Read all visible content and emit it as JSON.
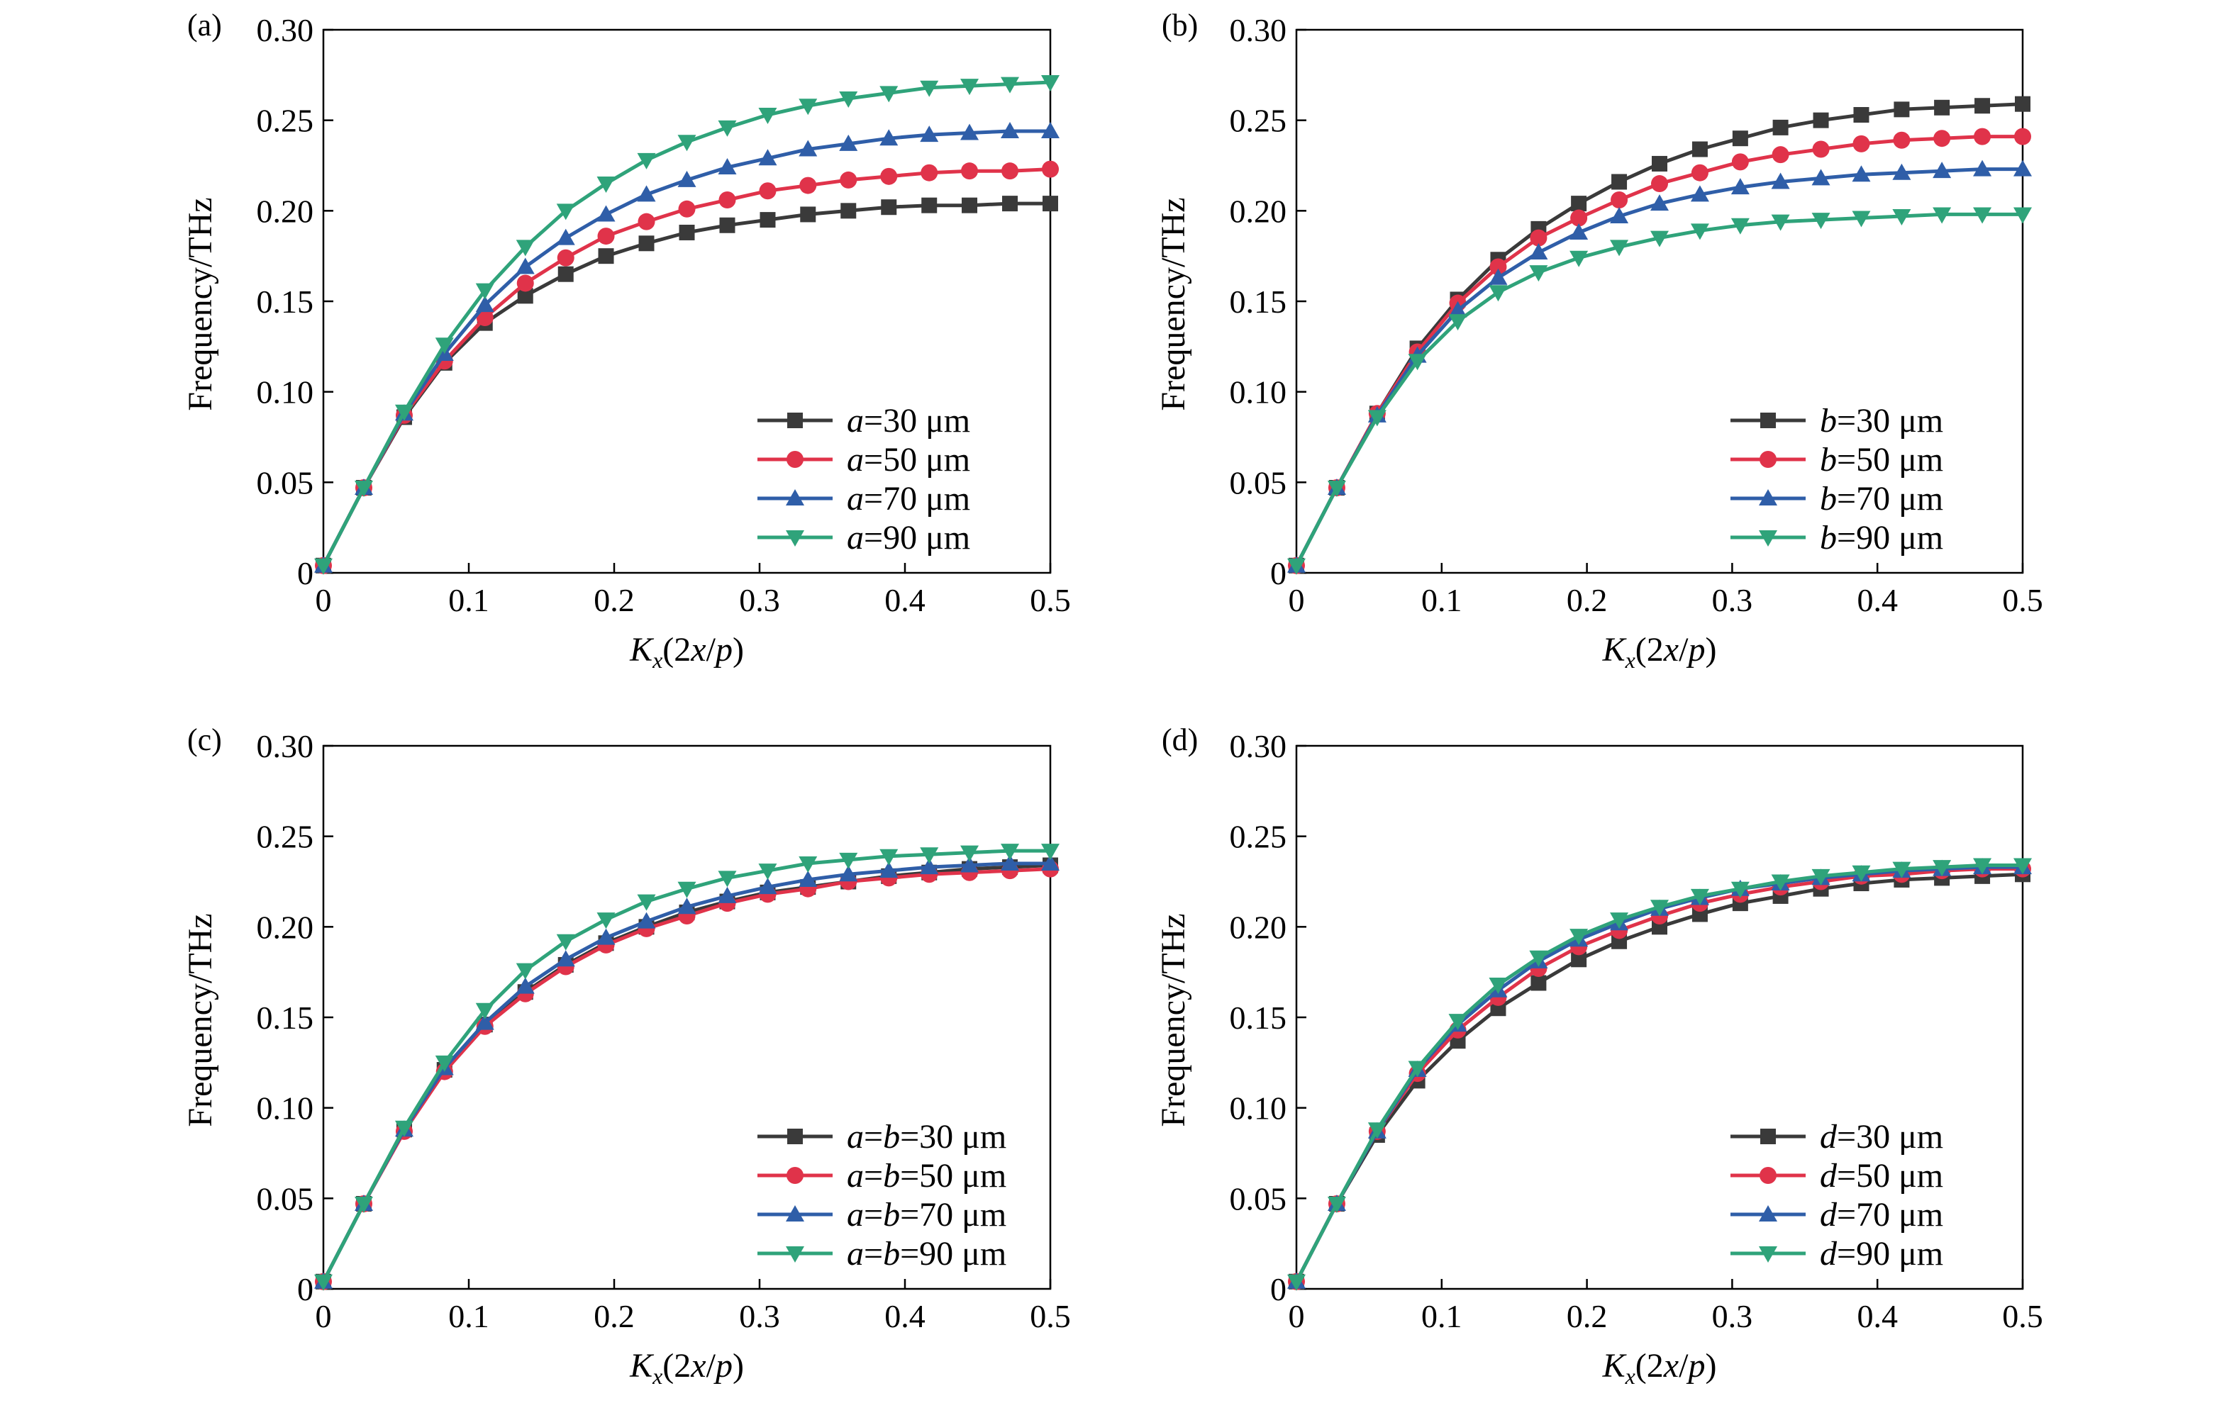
{
  "colors": {
    "series": [
      "#3a3a3a",
      "#e0334a",
      "#2f5ea8",
      "#2fa37a"
    ],
    "axis": "#000000",
    "background": "#ffffff"
  },
  "markers": [
    "square",
    "circle",
    "triangle-up",
    "triangle-down"
  ],
  "chart_data": [
    {
      "type": "line",
      "panel_label": "(a)",
      "xlabel": "Kx(2x/p)",
      "ylabel": "Frequency/THz",
      "xlim": [
        0,
        0.5
      ],
      "ylim": [
        0,
        0.3
      ],
      "xticks": [
        "0",
        "0.1",
        "0.2",
        "0.3",
        "0.4",
        "0.5"
      ],
      "yticks": [
        "0",
        "0.05",
        "0.10",
        "0.15",
        "0.20",
        "0.25",
        "0.30"
      ],
      "grid": false,
      "legend_position": "bottom-right",
      "x": [
        0,
        0.0278,
        0.0556,
        0.0833,
        0.1111,
        0.1389,
        0.1667,
        0.1944,
        0.2222,
        0.25,
        0.2778,
        0.3056,
        0.3333,
        0.3611,
        0.3889,
        0.4167,
        0.4444,
        0.4722,
        0.5
      ],
      "series": [
        {
          "name_var": "a",
          "name_val": "=30 μm",
          "values": [
            0.004,
            0.047,
            0.086,
            0.116,
            0.138,
            0.153,
            0.165,
            0.175,
            0.182,
            0.188,
            0.192,
            0.195,
            0.198,
            0.2,
            0.202,
            0.203,
            0.203,
            0.204,
            0.204
          ]
        },
        {
          "name_var": "a",
          "name_val": "=50 μm",
          "values": [
            0.004,
            0.047,
            0.087,
            0.117,
            0.141,
            0.16,
            0.174,
            0.186,
            0.194,
            0.201,
            0.206,
            0.211,
            0.214,
            0.217,
            0.219,
            0.221,
            0.222,
            0.222,
            0.223
          ]
        },
        {
          "name_var": "a",
          "name_val": "=70 μm",
          "values": [
            0.004,
            0.047,
            0.088,
            0.121,
            0.148,
            0.169,
            0.185,
            0.198,
            0.209,
            0.217,
            0.224,
            0.229,
            0.234,
            0.237,
            0.24,
            0.242,
            0.243,
            0.244,
            0.244
          ]
        },
        {
          "name_var": "a",
          "name_val": "=90 μm",
          "values": [
            0.004,
            0.047,
            0.089,
            0.126,
            0.156,
            0.18,
            0.2,
            0.215,
            0.228,
            0.238,
            0.246,
            0.253,
            0.258,
            0.262,
            0.265,
            0.268,
            0.269,
            0.27,
            0.271
          ]
        }
      ]
    },
    {
      "type": "line",
      "panel_label": "(b)",
      "xlabel": "Kx(2x/p)",
      "ylabel": "Frequency/THz",
      "xlim": [
        0,
        0.5
      ],
      "ylim": [
        0,
        0.3
      ],
      "xticks": [
        "0",
        "0.1",
        "0.2",
        "0.3",
        "0.4",
        "0.5"
      ],
      "yticks": [
        "0",
        "0.05",
        "0.10",
        "0.15",
        "0.20",
        "0.25",
        "0.30"
      ],
      "grid": false,
      "legend_position": "bottom-right",
      "x": [
        0,
        0.0278,
        0.0556,
        0.0833,
        0.1111,
        0.1389,
        0.1667,
        0.1944,
        0.2222,
        0.25,
        0.2778,
        0.3056,
        0.3333,
        0.3611,
        0.3889,
        0.4167,
        0.4444,
        0.4722,
        0.5
      ],
      "series": [
        {
          "name_var": "b",
          "name_val": "=30 μm",
          "values": [
            0.004,
            0.047,
            0.088,
            0.124,
            0.151,
            0.173,
            0.19,
            0.204,
            0.216,
            0.226,
            0.234,
            0.24,
            0.246,
            0.25,
            0.253,
            0.256,
            0.257,
            0.258,
            0.259
          ]
        },
        {
          "name_var": "b",
          "name_val": "=50 μm",
          "values": [
            0.004,
            0.047,
            0.088,
            0.122,
            0.149,
            0.169,
            0.185,
            0.196,
            0.206,
            0.215,
            0.221,
            0.227,
            0.231,
            0.234,
            0.237,
            0.239,
            0.24,
            0.241,
            0.241
          ]
        },
        {
          "name_var": "b",
          "name_val": "=70 μm",
          "values": [
            0.004,
            0.047,
            0.087,
            0.12,
            0.145,
            0.163,
            0.177,
            0.188,
            0.197,
            0.204,
            0.209,
            0.213,
            0.216,
            0.218,
            0.22,
            0.221,
            0.222,
            0.223,
            0.223
          ]
        },
        {
          "name_var": "b",
          "name_val": "=90 μm",
          "values": [
            0.004,
            0.047,
            0.086,
            0.117,
            0.139,
            0.155,
            0.166,
            0.174,
            0.18,
            0.185,
            0.189,
            0.192,
            0.194,
            0.195,
            0.196,
            0.197,
            0.198,
            0.198,
            0.198
          ]
        }
      ]
    },
    {
      "type": "line",
      "panel_label": "(c)",
      "xlabel": "Kx(2x/p)",
      "ylabel": "Frequency/THz",
      "xlim": [
        0,
        0.5
      ],
      "ylim": [
        0,
        0.3
      ],
      "xticks": [
        "0",
        "0.1",
        "0.2",
        "0.3",
        "0.4",
        "0.5"
      ],
      "yticks": [
        "0",
        "0.05",
        "0.10",
        "0.15",
        "0.20",
        "0.25",
        "0.30"
      ],
      "grid": false,
      "legend_position": "bottom-right",
      "x": [
        0,
        0.0278,
        0.0556,
        0.0833,
        0.1111,
        0.1389,
        0.1667,
        0.1944,
        0.2222,
        0.25,
        0.2778,
        0.3056,
        0.3333,
        0.3611,
        0.3889,
        0.4167,
        0.4444,
        0.4722,
        0.5
      ],
      "series": [
        {
          "name_var": "a=b",
          "name_val": "=30 μm",
          "values": [
            0.004,
            0.047,
            0.088,
            0.121,
            0.146,
            0.164,
            0.179,
            0.191,
            0.2,
            0.208,
            0.214,
            0.219,
            0.222,
            0.225,
            0.228,
            0.23,
            0.232,
            0.233,
            0.234
          ]
        },
        {
          "name_var": "a=b",
          "name_val": "=50 μm",
          "values": [
            0.004,
            0.047,
            0.087,
            0.12,
            0.145,
            0.163,
            0.178,
            0.19,
            0.199,
            0.206,
            0.213,
            0.218,
            0.221,
            0.225,
            0.227,
            0.229,
            0.23,
            0.231,
            0.232
          ]
        },
        {
          "name_var": "a=b",
          "name_val": "=70 μm",
          "values": [
            0.004,
            0.047,
            0.088,
            0.122,
            0.147,
            0.167,
            0.182,
            0.194,
            0.203,
            0.211,
            0.217,
            0.222,
            0.226,
            0.229,
            0.231,
            0.233,
            0.234,
            0.235,
            0.235
          ]
        },
        {
          "name_var": "a=b",
          "name_val": "=90 μm",
          "values": [
            0.004,
            0.047,
            0.089,
            0.125,
            0.154,
            0.176,
            0.192,
            0.204,
            0.214,
            0.221,
            0.227,
            0.231,
            0.235,
            0.237,
            0.239,
            0.24,
            0.241,
            0.242,
            0.242
          ]
        }
      ]
    },
    {
      "type": "line",
      "panel_label": "(d)",
      "xlabel": "Kx(2x/p)",
      "ylabel": "Frequency/THz",
      "xlim": [
        0,
        0.5
      ],
      "ylim": [
        0,
        0.3
      ],
      "xticks": [
        "0",
        "0.1",
        "0.2",
        "0.3",
        "0.4",
        "0.5"
      ],
      "yticks": [
        "0",
        "0.05",
        "0.10",
        "0.15",
        "0.20",
        "0.25",
        "0.30"
      ],
      "grid": false,
      "legend_position": "bottom-right",
      "x": [
        0,
        0.0278,
        0.0556,
        0.0833,
        0.1111,
        0.1389,
        0.1667,
        0.1944,
        0.2222,
        0.25,
        0.2778,
        0.3056,
        0.3333,
        0.3611,
        0.3889,
        0.4167,
        0.4444,
        0.4722,
        0.5
      ],
      "series": [
        {
          "name_var": "d",
          "name_val": "=30 μm",
          "values": [
            0.004,
            0.047,
            0.085,
            0.115,
            0.137,
            0.155,
            0.169,
            0.182,
            0.192,
            0.2,
            0.207,
            0.213,
            0.217,
            0.221,
            0.224,
            0.226,
            0.227,
            0.228,
            0.229
          ]
        },
        {
          "name_var": "d",
          "name_val": "=50 μm",
          "values": [
            0.004,
            0.047,
            0.087,
            0.119,
            0.143,
            0.161,
            0.177,
            0.189,
            0.198,
            0.206,
            0.213,
            0.218,
            0.222,
            0.225,
            0.228,
            0.229,
            0.231,
            0.232,
            0.232
          ]
        },
        {
          "name_var": "d",
          "name_val": "=70 μm",
          "values": [
            0.004,
            0.047,
            0.087,
            0.121,
            0.146,
            0.165,
            0.181,
            0.193,
            0.202,
            0.21,
            0.216,
            0.221,
            0.224,
            0.227,
            0.229,
            0.231,
            0.232,
            0.233,
            0.233
          ]
        },
        {
          "name_var": "d",
          "name_val": "=90 μm",
          "values": [
            0.004,
            0.047,
            0.088,
            0.122,
            0.148,
            0.168,
            0.183,
            0.195,
            0.204,
            0.211,
            0.217,
            0.221,
            0.225,
            0.228,
            0.23,
            0.232,
            0.233,
            0.234,
            0.234
          ]
        }
      ]
    }
  ]
}
